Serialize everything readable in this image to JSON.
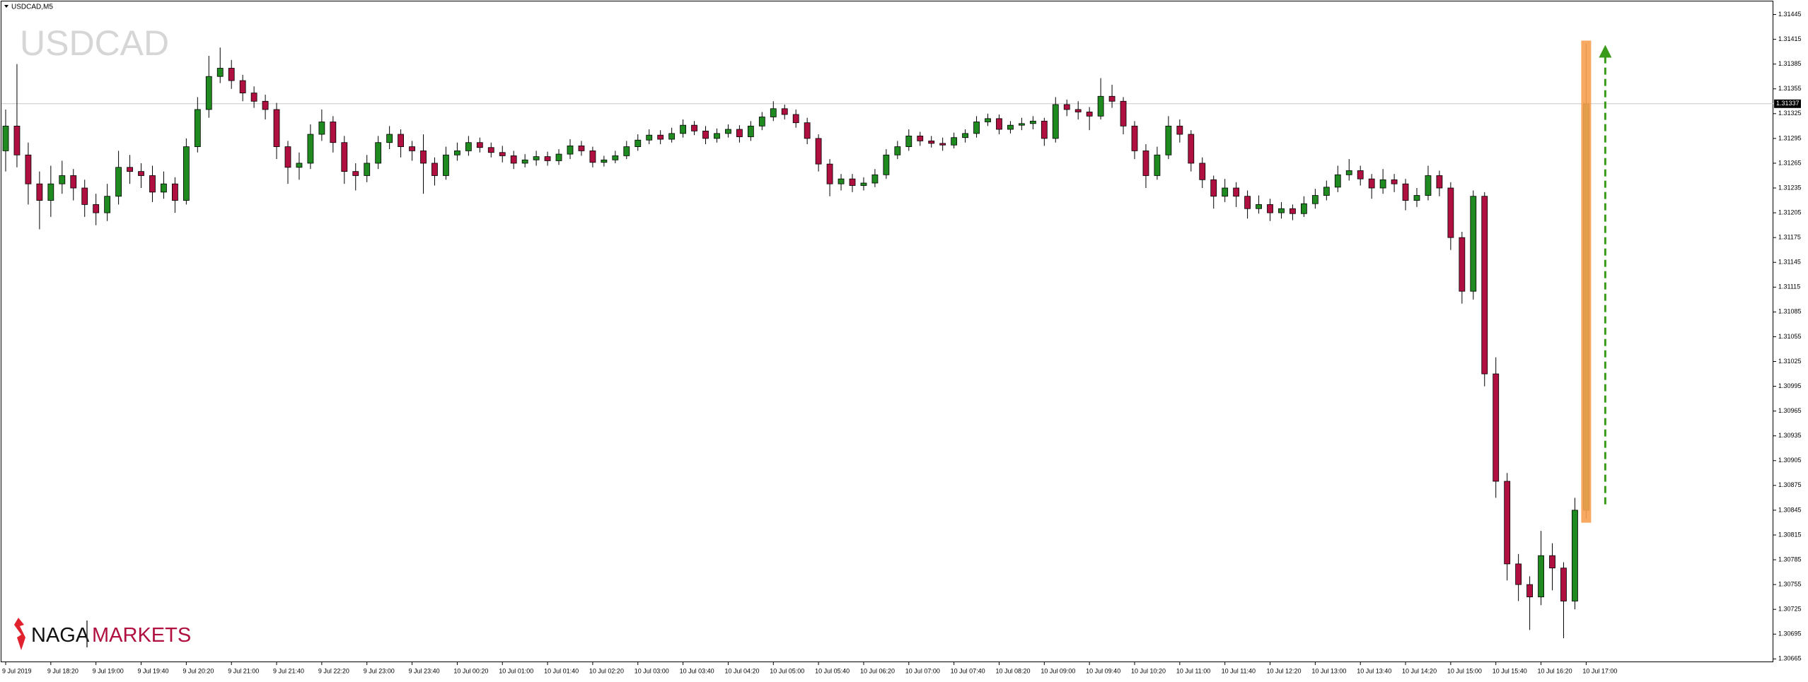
{
  "chart_data": {
    "type": "candlestick",
    "symbol": "USDCAD,M5",
    "watermark": "USDCAD",
    "logo": {
      "left": "NAGA",
      "right": "MARKETS"
    },
    "colors": {
      "up": "#1f8a1f",
      "down": "#b01040",
      "wick": "#000000",
      "highlight": "#f7a050",
      "arrow": "#3a9a1a"
    },
    "last_price": 1.31337,
    "ylim": [
      1.30661,
      1.3146
    ],
    "yticks": [
      1.31445,
      1.31415,
      1.31385,
      1.31355,
      1.31325,
      1.31295,
      1.31265,
      1.31235,
      1.31205,
      1.31175,
      1.31145,
      1.31115,
      1.31085,
      1.31055,
      1.31025,
      1.30995,
      1.30965,
      1.30935,
      1.30905,
      1.30875,
      1.30845,
      1.30815,
      1.30785,
      1.30755,
      1.30725,
      1.30695,
      1.30665
    ],
    "categories": [
      "9 Jul 2019",
      null,
      null,
      null,
      "9 Jul 18:20",
      null,
      null,
      null,
      "9 Jul 19:00",
      null,
      null,
      null,
      "9 Jul 19:40",
      null,
      null,
      null,
      "9 Jul 20:20",
      null,
      null,
      null,
      "9 Jul 21:00",
      null,
      null,
      null,
      "9 Jul 21:40",
      null,
      null,
      null,
      "9 Jul 22:20",
      null,
      null,
      null,
      "9 Jul 23:00",
      null,
      null,
      null,
      "9 Jul 23:40",
      null,
      null,
      null,
      "10 Jul 00:20",
      null,
      null,
      null,
      "10 Jul 01:00",
      null,
      null,
      null,
      "10 Jul 01:40",
      null,
      null,
      null,
      "10 Jul 02:20",
      null,
      null,
      null,
      "10 Jul 03:00",
      null,
      null,
      null,
      "10 Jul 03:40",
      null,
      null,
      null,
      "10 Jul 04:20",
      null,
      null,
      null,
      "10 Jul 05:00",
      null,
      null,
      null,
      "10 Jul 05:40",
      null,
      null,
      null,
      "10 Jul 06:20",
      null,
      null,
      null,
      "10 Jul 07:00",
      null,
      null,
      null,
      "10 Jul 07:40",
      null,
      null,
      null,
      "10 Jul 08:20",
      null,
      null,
      null,
      "10 Jul 09:00",
      null,
      null,
      null,
      "10 Jul 09:40",
      null,
      null,
      null,
      "10 Jul 10:20",
      null,
      null,
      null,
      "10 Jul 11:00",
      null,
      null,
      null,
      "10 Jul 11:40",
      null,
      null,
      null,
      "10 Jul 12:20",
      null,
      null,
      null,
      "10 Jul 13:00",
      null,
      null,
      null,
      "10 Jul 13:40",
      null,
      null,
      null,
      "10 Jul 14:20",
      null,
      null,
      null,
      "10 Jul 15:00",
      null,
      null,
      null,
      "10 Jul 15:40",
      null,
      null,
      null,
      "10 Jul 16:20",
      null,
      null,
      null,
      "10 Jul 17:00"
    ],
    "ohlc": [
      [
        1.3128,
        1.3133,
        1.31255,
        1.3131
      ],
      [
        1.3131,
        1.31385,
        1.3126,
        1.31275
      ],
      [
        1.31275,
        1.3129,
        1.31215,
        1.3124
      ],
      [
        1.3124,
        1.31255,
        1.31185,
        1.3122
      ],
      [
        1.3122,
        1.31262,
        1.312,
        1.3124
      ],
      [
        1.3124,
        1.31268,
        1.31228,
        1.3125
      ],
      [
        1.3125,
        1.31258,
        1.3122,
        1.31235
      ],
      [
        1.31235,
        1.31245,
        1.312,
        1.31215
      ],
      [
        1.31215,
        1.31228,
        1.3119,
        1.31205
      ],
      [
        1.31205,
        1.3124,
        1.31195,
        1.31225
      ],
      [
        1.31225,
        1.3128,
        1.31215,
        1.3126
      ],
      [
        1.3126,
        1.31275,
        1.3124,
        1.31255
      ],
      [
        1.31255,
        1.31265,
        1.31235,
        1.3125
      ],
      [
        1.3125,
        1.31262,
        1.31218,
        1.3123
      ],
      [
        1.3123,
        1.31255,
        1.31222,
        1.3124
      ],
      [
        1.3124,
        1.31248,
        1.31205,
        1.3122
      ],
      [
        1.3122,
        1.31295,
        1.31215,
        1.31285
      ],
      [
        1.31285,
        1.31345,
        1.31278,
        1.3133
      ],
      [
        1.3133,
        1.31395,
        1.3132,
        1.3137
      ],
      [
        1.3137,
        1.31405,
        1.31362,
        1.3138
      ],
      [
        1.3138,
        1.3139,
        1.31355,
        1.31365
      ],
      [
        1.31365,
        1.31372,
        1.3134,
        1.3135
      ],
      [
        1.3135,
        1.31358,
        1.31332,
        1.3134
      ],
      [
        1.3134,
        1.31348,
        1.31318,
        1.3133
      ],
      [
        1.3133,
        1.31338,
        1.3127,
        1.31285
      ],
      [
        1.31285,
        1.31292,
        1.3124,
        1.3126
      ],
      [
        1.3126,
        1.31278,
        1.31245,
        1.31265
      ],
      [
        1.31265,
        1.31312,
        1.31258,
        1.313
      ],
      [
        1.313,
        1.3133,
        1.31292,
        1.31315
      ],
      [
        1.31315,
        1.31322,
        1.31278,
        1.3129
      ],
      [
        1.3129,
        1.31298,
        1.3124,
        1.31255
      ],
      [
        1.31255,
        1.31265,
        1.31232,
        1.3125
      ],
      [
        1.3125,
        1.31275,
        1.31242,
        1.31265
      ],
      [
        1.31265,
        1.31298,
        1.31258,
        1.3129
      ],
      [
        1.3129,
        1.3131,
        1.31282,
        1.313
      ],
      [
        1.313,
        1.31306,
        1.31272,
        1.31285
      ],
      [
        1.31285,
        1.31292,
        1.31268,
        1.3128
      ],
      [
        1.3128,
        1.313,
        1.31228,
        1.31265
      ],
      [
        1.31265,
        1.31272,
        1.31238,
        1.3125
      ],
      [
        1.3125,
        1.31285,
        1.31245,
        1.31275
      ],
      [
        1.31275,
        1.3129,
        1.31268,
        1.3128
      ],
      [
        1.3128,
        1.31298,
        1.31274,
        1.3129
      ],
      [
        1.3129,
        1.31296,
        1.31278,
        1.31284
      ],
      [
        1.31284,
        1.3129,
        1.31272,
        1.31278
      ],
      [
        1.31278,
        1.31286,
        1.31266,
        1.31274
      ],
      [
        1.31274,
        1.3128,
        1.31258,
        1.31265
      ],
      [
        1.31265,
        1.31276,
        1.3126,
        1.31269
      ],
      [
        1.31269,
        1.3128,
        1.31262,
        1.31273
      ],
      [
        1.31273,
        1.31279,
        1.31262,
        1.31268
      ],
      [
        1.31268,
        1.31282,
        1.31263,
        1.31276
      ],
      [
        1.31276,
        1.31294,
        1.3127,
        1.31286
      ],
      [
        1.31286,
        1.31292,
        1.31274,
        1.3128
      ],
      [
        1.3128,
        1.31285,
        1.3126,
        1.31266
      ],
      [
        1.31266,
        1.31274,
        1.31261,
        1.31269
      ],
      [
        1.31269,
        1.3128,
        1.31265,
        1.31274
      ],
      [
        1.31274,
        1.31292,
        1.3127,
        1.31285
      ],
      [
        1.31285,
        1.313,
        1.3128,
        1.31293
      ],
      [
        1.31293,
        1.31306,
        1.31288,
        1.31299
      ],
      [
        1.31299,
        1.31305,
        1.31288,
        1.31294
      ],
      [
        1.31294,
        1.31308,
        1.3129,
        1.31301
      ],
      [
        1.31301,
        1.31318,
        1.31296,
        1.31311
      ],
      [
        1.31311,
        1.31316,
        1.31299,
        1.31304
      ],
      [
        1.31304,
        1.3131,
        1.31288,
        1.31295
      ],
      [
        1.31295,
        1.31307,
        1.3129,
        1.31301
      ],
      [
        1.31301,
        1.31312,
        1.31296,
        1.31306
      ],
      [
        1.31306,
        1.31311,
        1.3129,
        1.31297
      ],
      [
        1.31297,
        1.31316,
        1.31292,
        1.3131
      ],
      [
        1.3131,
        1.31327,
        1.31305,
        1.31321
      ],
      [
        1.31321,
        1.3134,
        1.31316,
        1.31331
      ],
      [
        1.31331,
        1.31336,
        1.31318,
        1.31324
      ],
      [
        1.31324,
        1.3133,
        1.31308,
        1.31314
      ],
      [
        1.31314,
        1.3132,
        1.31288,
        1.31295
      ],
      [
        1.31295,
        1.313,
        1.31255,
        1.31264
      ],
      [
        1.31264,
        1.3127,
        1.31225,
        1.3124
      ],
      [
        1.3124,
        1.31252,
        1.31232,
        1.31246
      ],
      [
        1.31246,
        1.31252,
        1.3123,
        1.31238
      ],
      [
        1.31238,
        1.31248,
        1.31232,
        1.31241
      ],
      [
        1.31241,
        1.31258,
        1.31236,
        1.31251
      ],
      [
        1.31251,
        1.31282,
        1.31246,
        1.31275
      ],
      [
        1.31275,
        1.31292,
        1.3127,
        1.31285
      ],
      [
        1.31285,
        1.31306,
        1.3128,
        1.31298
      ],
      [
        1.31298,
        1.31303,
        1.31286,
        1.31292
      ],
      [
        1.31292,
        1.31298,
        1.31284,
        1.31289
      ],
      [
        1.31289,
        1.31296,
        1.3128,
        1.31287
      ],
      [
        1.31287,
        1.31302,
        1.31283,
        1.31296
      ],
      [
        1.31296,
        1.31306,
        1.3129,
        1.31301
      ],
      [
        1.31301,
        1.31322,
        1.31296,
        1.31315
      ],
      [
        1.31315,
        1.31325,
        1.3131,
        1.31319
      ],
      [
        1.31319,
        1.31324,
        1.313,
        1.31306
      ],
      [
        1.31306,
        1.31316,
        1.31301,
        1.31311
      ],
      [
        1.31311,
        1.3132,
        1.31305,
        1.31313
      ],
      [
        1.31313,
        1.31322,
        1.31306,
        1.31316
      ],
      [
        1.31316,
        1.3132,
        1.31286,
        1.31295
      ],
      [
        1.31295,
        1.31345,
        1.3129,
        1.31336
      ],
      [
        1.31336,
        1.31342,
        1.31322,
        1.3133
      ],
      [
        1.3133,
        1.3134,
        1.31318,
        1.31327
      ],
      [
        1.31327,
        1.31333,
        1.31305,
        1.31322
      ],
      [
        1.31322,
        1.31368,
        1.31318,
        1.31346
      ],
      [
        1.31346,
        1.3136,
        1.31332,
        1.3134
      ],
      [
        1.3134,
        1.31345,
        1.313,
        1.3131
      ],
      [
        1.3131,
        1.31316,
        1.3127,
        1.3128
      ],
      [
        1.3128,
        1.31288,
        1.31235,
        1.3125
      ],
      [
        1.3125,
        1.31285,
        1.31245,
        1.31275
      ],
      [
        1.31275,
        1.31322,
        1.3127,
        1.3131
      ],
      [
        1.3131,
        1.31318,
        1.3129,
        1.313
      ],
      [
        1.313,
        1.31305,
        1.31255,
        1.31265
      ],
      [
        1.31265,
        1.31272,
        1.31235,
        1.31245
      ],
      [
        1.31245,
        1.3125,
        1.3121,
        1.31225
      ],
      [
        1.31225,
        1.31246,
        1.31218,
        1.31235
      ],
      [
        1.31235,
        1.31242,
        1.31212,
        1.31225
      ],
      [
        1.31225,
        1.31232,
        1.31198,
        1.3121
      ],
      [
        1.3121,
        1.31226,
        1.31204,
        1.31215
      ],
      [
        1.31215,
        1.31222,
        1.31195,
        1.31205
      ],
      [
        1.31205,
        1.31218,
        1.31198,
        1.3121
      ],
      [
        1.3121,
        1.31215,
        1.31196,
        1.31204
      ],
      [
        1.31204,
        1.31225,
        1.312,
        1.31216
      ],
      [
        1.31216,
        1.31234,
        1.3121,
        1.31226
      ],
      [
        1.31226,
        1.31244,
        1.3122,
        1.31236
      ],
      [
        1.31236,
        1.31262,
        1.3123,
        1.31251
      ],
      [
        1.31251,
        1.3127,
        1.31244,
        1.31256
      ],
      [
        1.31256,
        1.31262,
        1.31238,
        1.31246
      ],
      [
        1.31246,
        1.31252,
        1.31222,
        1.31235
      ],
      [
        1.31235,
        1.31258,
        1.31228,
        1.31245
      ],
      [
        1.31245,
        1.31252,
        1.3123,
        1.3124
      ],
      [
        1.3124,
        1.31246,
        1.31208,
        1.3122
      ],
      [
        1.3122,
        1.31235,
        1.31212,
        1.31226
      ],
      [
        1.31226,
        1.31262,
        1.3122,
        1.3125
      ],
      [
        1.3125,
        1.31256,
        1.31225,
        1.31235
      ],
      [
        1.31235,
        1.31242,
        1.3116,
        1.31175
      ],
      [
        1.31175,
        1.31182,
        1.31095,
        1.3111
      ],
      [
        1.3111,
        1.31232,
        1.311,
        1.31225
      ],
      [
        1.31225,
        1.3123,
        1.30995,
        1.3101
      ],
      [
        1.3101,
        1.3103,
        1.3086,
        1.3088
      ],
      [
        1.3088,
        1.3089,
        1.3076,
        1.3078
      ],
      [
        1.3078,
        1.30792,
        1.30735,
        1.30755
      ],
      [
        1.30755,
        1.30765,
        1.307,
        1.3074
      ],
      [
        1.3074,
        1.3082,
        1.3073,
        1.3079
      ],
      [
        1.3079,
        1.30805,
        1.30748,
        1.30775
      ],
      [
        1.30775,
        1.30782,
        1.3069,
        1.30735
      ],
      [
        1.30735,
        1.3086,
        1.30725,
        1.30845
      ],
      [
        1.30845,
        1.3141,
        1.30835,
        1.31337
      ]
    ]
  }
}
